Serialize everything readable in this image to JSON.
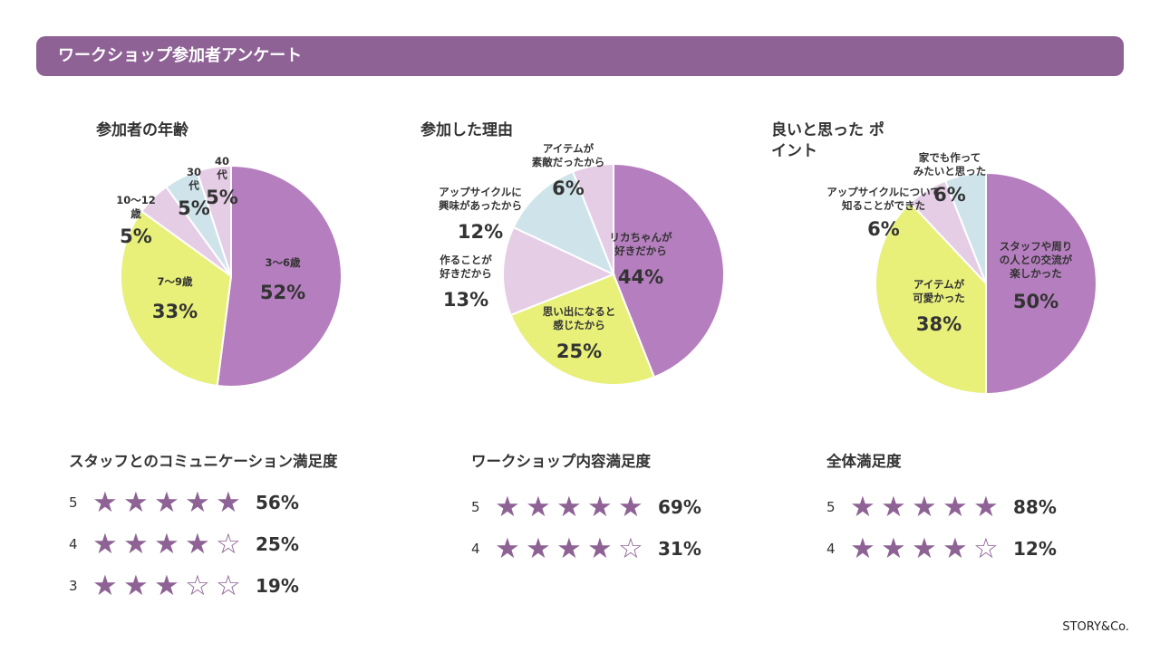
{
  "header": {
    "title": "ワークショップ参加者アンケート"
  },
  "chart_data": [
    {
      "type": "pie",
      "title": "参加者の年齢",
      "slices": [
        {
          "label": "3〜6歳",
          "value": 52,
          "display": "52%",
          "color": "#b57ebe"
        },
        {
          "label": "7〜9歳",
          "value": 33,
          "display": "33%",
          "color": "#e8f07a"
        },
        {
          "label": "10〜12 歳",
          "value": 5,
          "display": "5%",
          "color": "#e5cde6"
        },
        {
          "label": "30 代",
          "value": 5,
          "display": "5%",
          "color": "#cfe4ea"
        },
        {
          "label": "40 代",
          "value": 5,
          "display": "5%",
          "color": "#e5cde6"
        }
      ]
    },
    {
      "type": "pie",
      "title": "参加した理由",
      "slices": [
        {
          "label": "リカちゃんが 好きだから",
          "value": 44,
          "display": "44%",
          "color": "#b57ebe"
        },
        {
          "label": "思い出になると 感じたから",
          "value": 25,
          "display": "25%",
          "color": "#e8f07a"
        },
        {
          "label": "作ることが 好きだから",
          "value": 13,
          "display": "13%",
          "color": "#e5cde6"
        },
        {
          "label": "アップサイクルに 興味があったから",
          "value": 12,
          "display": "12%",
          "color": "#cfe4ea"
        },
        {
          "label": "アイテムが 素敵だったから",
          "value": 6,
          "display": "6%",
          "color": "#e5cde6"
        }
      ]
    },
    {
      "type": "pie",
      "title": "良いと思った ポイント",
      "slices": [
        {
          "label": "スタッフや周り の人との交流が 楽しかった",
          "value": 50,
          "display": "50%",
          "color": "#b57ebe"
        },
        {
          "label": "アイテムが 可愛かった",
          "value": 38,
          "display": "38%",
          "color": "#e8f07a"
        },
        {
          "label": "アップサイクルについて 知ることができた",
          "value": 6,
          "display": "6%",
          "color": "#e5cde6"
        },
        {
          "label": "家でも作って みたいと思った",
          "value": 6,
          "display": "6%",
          "color": "#cfe4ea"
        }
      ]
    },
    {
      "type": "table",
      "title": "スタッフとのコミュニケーション満足度",
      "rows": [
        {
          "level": "5",
          "stars": 5,
          "percent": "56%"
        },
        {
          "level": "4",
          "stars": 4,
          "percent": "25%"
        },
        {
          "level": "3",
          "stars": 3,
          "percent": "19%"
        }
      ]
    },
    {
      "type": "table",
      "title": "ワークショップ内容満足度",
      "rows": [
        {
          "level": "5",
          "stars": 5,
          "percent": "69%"
        },
        {
          "level": "4",
          "stars": 4,
          "percent": "31%"
        }
      ]
    },
    {
      "type": "table",
      "title": "全体満足度",
      "rows": [
        {
          "level": "5",
          "stars": 5,
          "percent": "88%"
        },
        {
          "level": "4",
          "stars": 4,
          "percent": "12%"
        }
      ]
    }
  ],
  "footer": {
    "brand": "STORY&Co."
  }
}
